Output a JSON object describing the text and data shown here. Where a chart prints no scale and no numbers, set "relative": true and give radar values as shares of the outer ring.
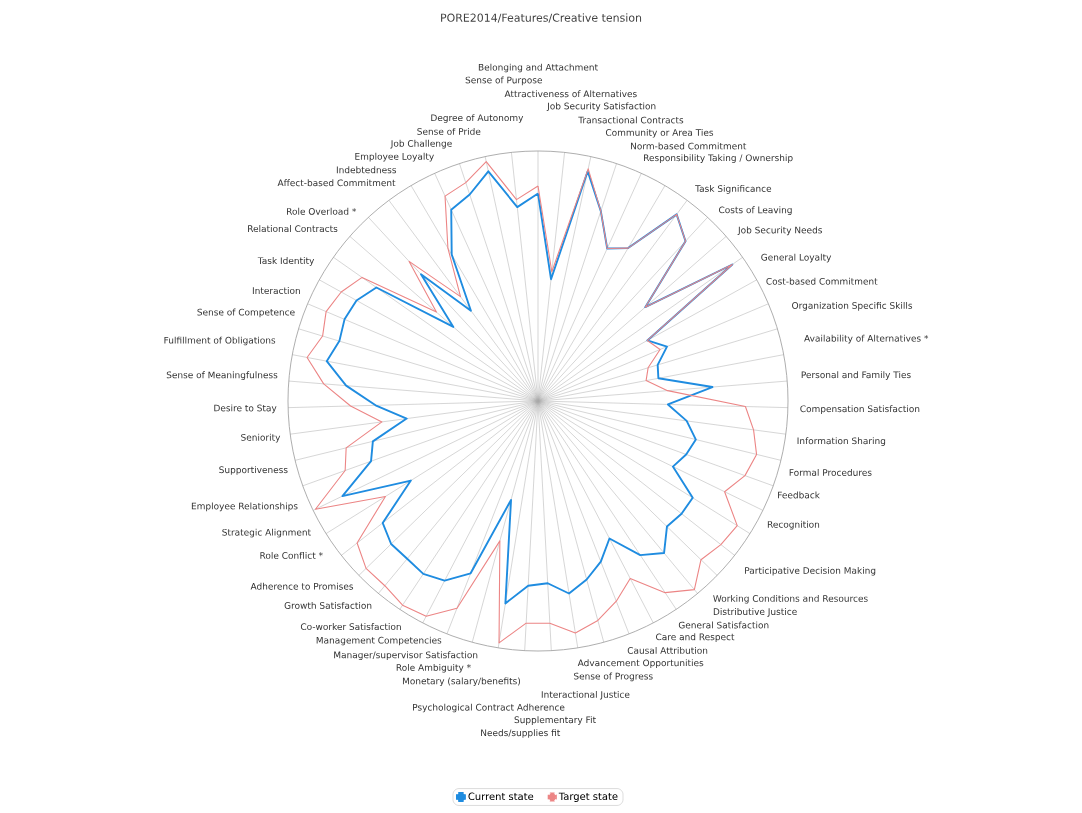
{
  "chart_data": {
    "type": "radar",
    "title": "PORE2014/Features/Creative tension",
    "categories": [
      "Belonging and Attachment",
      "Attractiveness of Alternatives",
      "Job Security Satisfaction",
      "Transactional Contracts",
      "Community or Area Ties",
      "Norm-based Commitment",
      "Responsibility Taking / Ownership",
      "Task Significance",
      "Costs of Leaving",
      "Job Security Needs",
      "General  Loyalty",
      "Cost-based Commitment",
      "Organization Specific Skills",
      "Availability of Alternatives *",
      "Personal and Family Ties",
      "Compensation Satisfaction",
      "Information Sharing",
      "Formal Procedures",
      "Feedback",
      "Recognition",
      "Participative Decision Making",
      "Working Conditions and Resources",
      "Distributive Justice",
      "General Satisfaction",
      "Care and Respect",
      "Causal Attribution",
      "Advancement Opportunities",
      "Sense of Progress",
      "Interactional Justice",
      "Supplementary Fit",
      "Needs/supplies fit",
      "Psychological Contract Adherence",
      "Monetary (salary/benefits)",
      "Role Ambiguity *",
      "Manager/supervisor Satisfaction",
      "Management Competencies",
      "Co-worker Satisfaction",
      "Growth Satisfaction",
      "Adherence to Promises",
      "Role Conflict *",
      "Strategic Alignment",
      "Employee Relationships",
      "Supportiveness",
      "Seniority",
      "Desire to Stay",
      "Sense of Meaningfulness",
      "Fulfillment of Obligations",
      "Sense of Competence",
      "Interaction",
      "Task Identity",
      "Relational Contracts",
      "Role Overload *",
      "Affect-based Commitment",
      "Indebtedness",
      "Employee Loyalty",
      "Job Challenge",
      "Sense of Pride",
      "Degree of Autonomy",
      "Sense of Purpose"
    ],
    "series": [
      {
        "name": "Current state",
        "color": "#1f8ce0",
        "values": [
          0.83,
          0.49,
          0.94,
          0.8,
          0.67,
          0.71,
          0.93,
          0.87,
          0.57,
          0.95,
          0.5,
          0.56,
          0.5,
          0.49,
          0.7,
          0.52,
          0.6,
          0.65,
          0.63,
          0.6,
          0.73,
          0.73,
          0.72,
          0.79,
          0.74,
          0.62,
          0.69,
          0.74,
          0.78,
          0.73,
          0.74,
          0.82,
          0.41,
          0.74,
          0.81,
          0.83,
          0.82,
          0.82,
          0.79,
          0.6,
          0.87,
          0.71,
          0.68,
          0.53,
          0.65,
          0.77,
          0.86,
          0.83,
          0.84,
          0.83,
          0.79,
          0.45,
          0.69,
          0.45,
          0.68,
          0.84,
          0.87,
          0.94,
          0.78
        ]
      },
      {
        "name": "Target state",
        "color": "#ec8585",
        "values": [
          0.86,
          0.52,
          0.95,
          0.8,
          0.67,
          0.71,
          0.93,
          0.87,
          0.57,
          0.95,
          0.5,
          0.53,
          0.46,
          0.44,
          0.52,
          0.83,
          0.87,
          0.9,
          0.88,
          0.83,
          0.94,
          0.93,
          0.91,
          0.98,
          0.92,
          0.8,
          0.86,
          0.91,
          0.94,
          0.89,
          0.89,
          0.98,
          0.58,
          0.89,
          0.97,
          0.98,
          0.96,
          0.96,
          0.92,
          0.72,
          0.99,
          0.82,
          0.79,
          0.63,
          0.75,
          0.86,
          0.94,
          0.9,
          0.92,
          0.9,
          0.86,
          0.54,
          0.76,
          0.52,
          0.71,
          0.9,
          0.92,
          0.98,
          0.81
        ]
      }
    ],
    "relative": true,
    "grid": true,
    "legend": "bottom"
  }
}
